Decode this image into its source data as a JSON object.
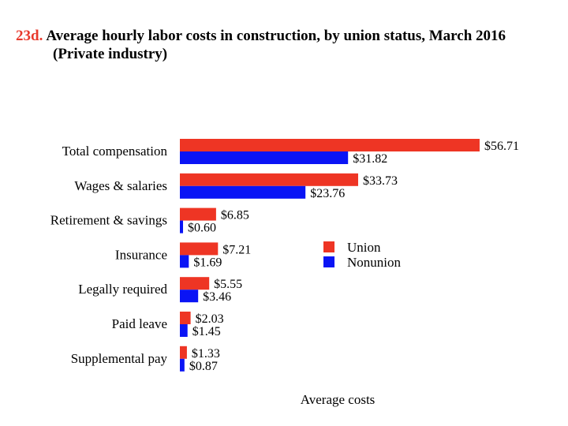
{
  "header": {
    "number": "23d.",
    "title": "Average hourly labor costs in construction, by union status, March 2016",
    "subtitle": "(Private industry)"
  },
  "chart_data": {
    "type": "bar",
    "orientation": "horizontal",
    "categories": [
      "Total compensation",
      "Wages & salaries",
      "Retirement & savings",
      "Insurance",
      "Legally required",
      "Paid leave",
      "Supplemental pay"
    ],
    "series": [
      {
        "name": "Union",
        "color": "#ee3524",
        "values": [
          56.71,
          33.73,
          6.85,
          7.21,
          5.55,
          2.03,
          1.33
        ],
        "labels": [
          "$56.71",
          "$33.73",
          "$6.85",
          "$7.21",
          "$5.55",
          "$2.03",
          "$1.33"
        ]
      },
      {
        "name": "Nonunion",
        "color": "#0a14f5",
        "values": [
          31.82,
          23.76,
          0.6,
          1.69,
          3.46,
          1.45,
          0.87
        ],
        "labels": [
          "$31.82",
          "$23.76",
          "$0.60",
          "$1.69",
          "$3.46",
          "$1.45",
          "$0.87"
        ]
      }
    ],
    "xlabel": "Average costs",
    "xlim": [
      0,
      60
    ],
    "grid": false,
    "legend_position": "center-right"
  }
}
